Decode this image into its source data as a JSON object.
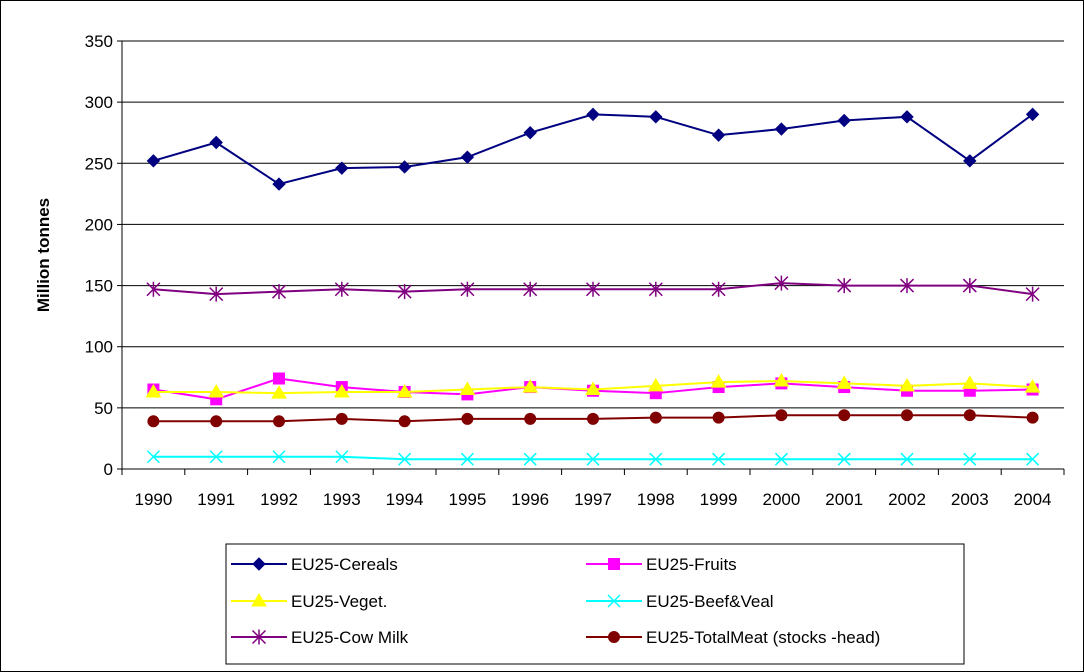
{
  "chart_data": {
    "type": "line",
    "ylabel": "Million tonnes",
    "xlabel": "",
    "ylim": [
      0,
      350
    ],
    "yticks": [
      0,
      50,
      100,
      150,
      200,
      250,
      300,
      350
    ],
    "grid": "horizontal",
    "legend_position": "bottom",
    "x": [
      "1990",
      "1991",
      "1992",
      "1993",
      "1994",
      "1995",
      "1996",
      "1997",
      "1998",
      "1999",
      "2000",
      "2001",
      "2002",
      "2003",
      "2004"
    ],
    "series": [
      {
        "name": "EU25-Cereals",
        "color": "#000080",
        "marker": "diamond",
        "values": [
          252,
          267,
          233,
          246,
          247,
          255,
          275,
          290,
          288,
          273,
          278,
          285,
          288,
          252,
          290
        ]
      },
      {
        "name": "EU25-Fruits",
        "color": "#FF00FF",
        "marker": "square",
        "values": [
          65,
          57,
          74,
          67,
          63,
          61,
          67,
          64,
          62,
          67,
          70,
          67,
          64,
          64,
          65
        ]
      },
      {
        "name": "EU25-Veget.",
        "color": "#FFFF00",
        "marker": "triangle",
        "values": [
          63,
          63,
          62,
          63,
          63,
          65,
          67,
          65,
          68,
          71,
          72,
          70,
          68,
          70,
          67
        ]
      },
      {
        "name": "EU25-Beef&Veal",
        "color": "#00FFFF",
        "marker": "x",
        "values": [
          10,
          10,
          10,
          10,
          8,
          8,
          8,
          8,
          8,
          8,
          8,
          8,
          8,
          8,
          8
        ]
      },
      {
        "name": "EU25-Cow Milk",
        "color": "#800080",
        "marker": "star",
        "values": [
          147,
          143,
          145,
          147,
          145,
          147,
          147,
          147,
          147,
          147,
          152,
          150,
          150,
          150,
          143
        ]
      },
      {
        "name": "EU25-TotalMeat (stocks -head)",
        "color": "#800000",
        "marker": "circle",
        "values": [
          39,
          39,
          39,
          41,
          39,
          41,
          41,
          41,
          42,
          42,
          44,
          44,
          44,
          44,
          42
        ]
      }
    ]
  }
}
